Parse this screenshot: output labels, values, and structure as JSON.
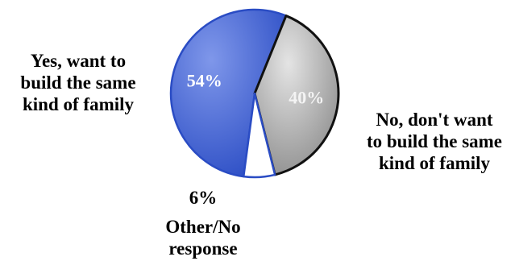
{
  "chart_data": {
    "type": "pie",
    "slices": [
      {
        "label": "Yes, want to\nbuild the same\nkind of family",
        "value": 54,
        "value_label": "54%",
        "color": "#3a5fd0"
      },
      {
        "label": "No, don't want\nto build the same\nkind of family",
        "value": 40,
        "value_label": "40%",
        "color": "#9a9a9a"
      },
      {
        "label": "Other/No\nresponse",
        "value": 6,
        "value_label": "6%",
        "color": "#ffffff"
      }
    ]
  }
}
